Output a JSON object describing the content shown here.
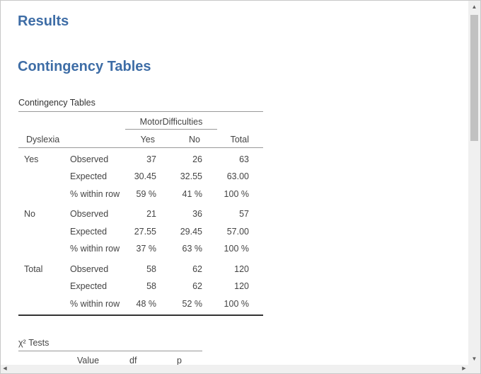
{
  "headings": {
    "results": "Results",
    "section": "Contingency Tables"
  },
  "contingency": {
    "title": "Contingency Tables",
    "group_header": "MotorDifficulties",
    "row_var": "Dyslexia",
    "col_headers": [
      "Yes",
      "No",
      "Total"
    ],
    "rows": [
      {
        "group": "Yes",
        "stat": "Observed",
        "values": [
          "37",
          "26",
          "63"
        ]
      },
      {
        "group": "",
        "stat": "Expected",
        "values": [
          "30.45",
          "32.55",
          "63.00"
        ]
      },
      {
        "group": "",
        "stat": "% within row",
        "values": [
          "59 %",
          "41 %",
          "100 %"
        ]
      },
      {
        "group": "No",
        "stat": "Observed",
        "values": [
          "21",
          "36",
          "57"
        ]
      },
      {
        "group": "",
        "stat": "Expected",
        "values": [
          "27.55",
          "29.45",
          "57.00"
        ]
      },
      {
        "group": "",
        "stat": "% within row",
        "values": [
          "37 %",
          "63 %",
          "100 %"
        ]
      },
      {
        "group": "Total",
        "stat": "Observed",
        "values": [
          "58",
          "62",
          "120"
        ]
      },
      {
        "group": "",
        "stat": "Expected",
        "values": [
          "58",
          "62",
          "120"
        ]
      },
      {
        "group": "",
        "stat": "% within row",
        "values": [
          "48 %",
          "52 %",
          "100 %"
        ]
      }
    ]
  },
  "chi_tests": {
    "title_symbol": "χ²",
    "title_rest": " Tests",
    "col_headers": [
      "Value",
      "df",
      "p"
    ]
  },
  "scrollbar": {
    "up_icon": "▲",
    "down_icon": "▼",
    "left_icon": "◀",
    "right_icon": "▶"
  }
}
